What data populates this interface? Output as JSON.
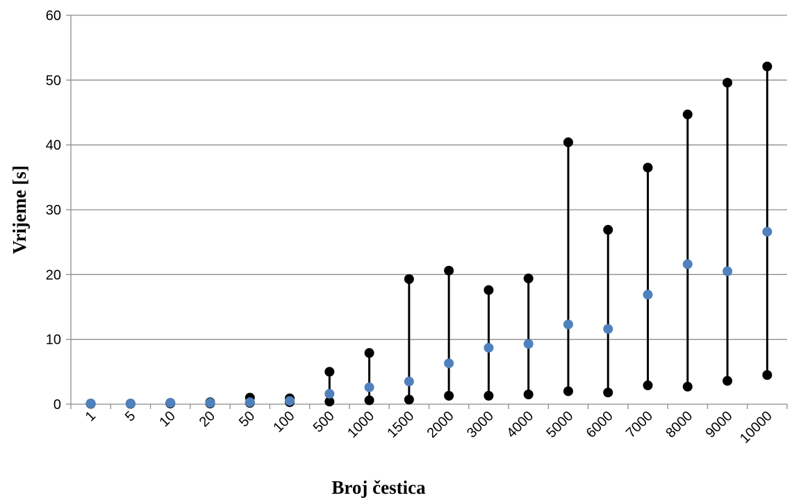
{
  "chart_data": {
    "type": "scatter",
    "title": "",
    "xlabel": "Broj čestica",
    "ylabel": "Vrijeme [s]",
    "ylim": [
      0,
      60
    ],
    "yticks": [
      "0",
      "10",
      "20",
      "30",
      "40",
      "50",
      "60"
    ],
    "grid": "horizontal",
    "legend": "none",
    "categories": [
      "1",
      "5",
      "10",
      "20",
      "50",
      "100",
      "500",
      "1000",
      "1500",
      "2000",
      "3000",
      "4000",
      "5000",
      "6000",
      "7000",
      "8000",
      "9000",
      "10000"
    ],
    "series": [
      {
        "role": "max",
        "color": "#000000",
        "values": [
          0.1,
          0.1,
          0.2,
          0.3,
          1.0,
          0.9,
          5.0,
          7.9,
          19.3,
          20.6,
          17.6,
          19.4,
          40.4,
          26.9,
          36.5,
          44.7,
          49.6,
          52.1
        ]
      },
      {
        "role": "min",
        "color": "#000000",
        "values": [
          0.05,
          0.05,
          0.1,
          0.1,
          0.2,
          0.3,
          0.4,
          0.6,
          0.7,
          1.3,
          1.3,
          1.5,
          2.0,
          1.8,
          2.9,
          2.7,
          3.6,
          4.5
        ]
      },
      {
        "role": "mean",
        "color": "#4f81bd",
        "values": [
          0.1,
          0.1,
          0.2,
          0.2,
          0.3,
          0.5,
          1.6,
          2.6,
          3.5,
          6.3,
          8.7,
          9.3,
          12.3,
          11.6,
          16.9,
          21.6,
          20.5,
          26.6
        ]
      }
    ]
  }
}
